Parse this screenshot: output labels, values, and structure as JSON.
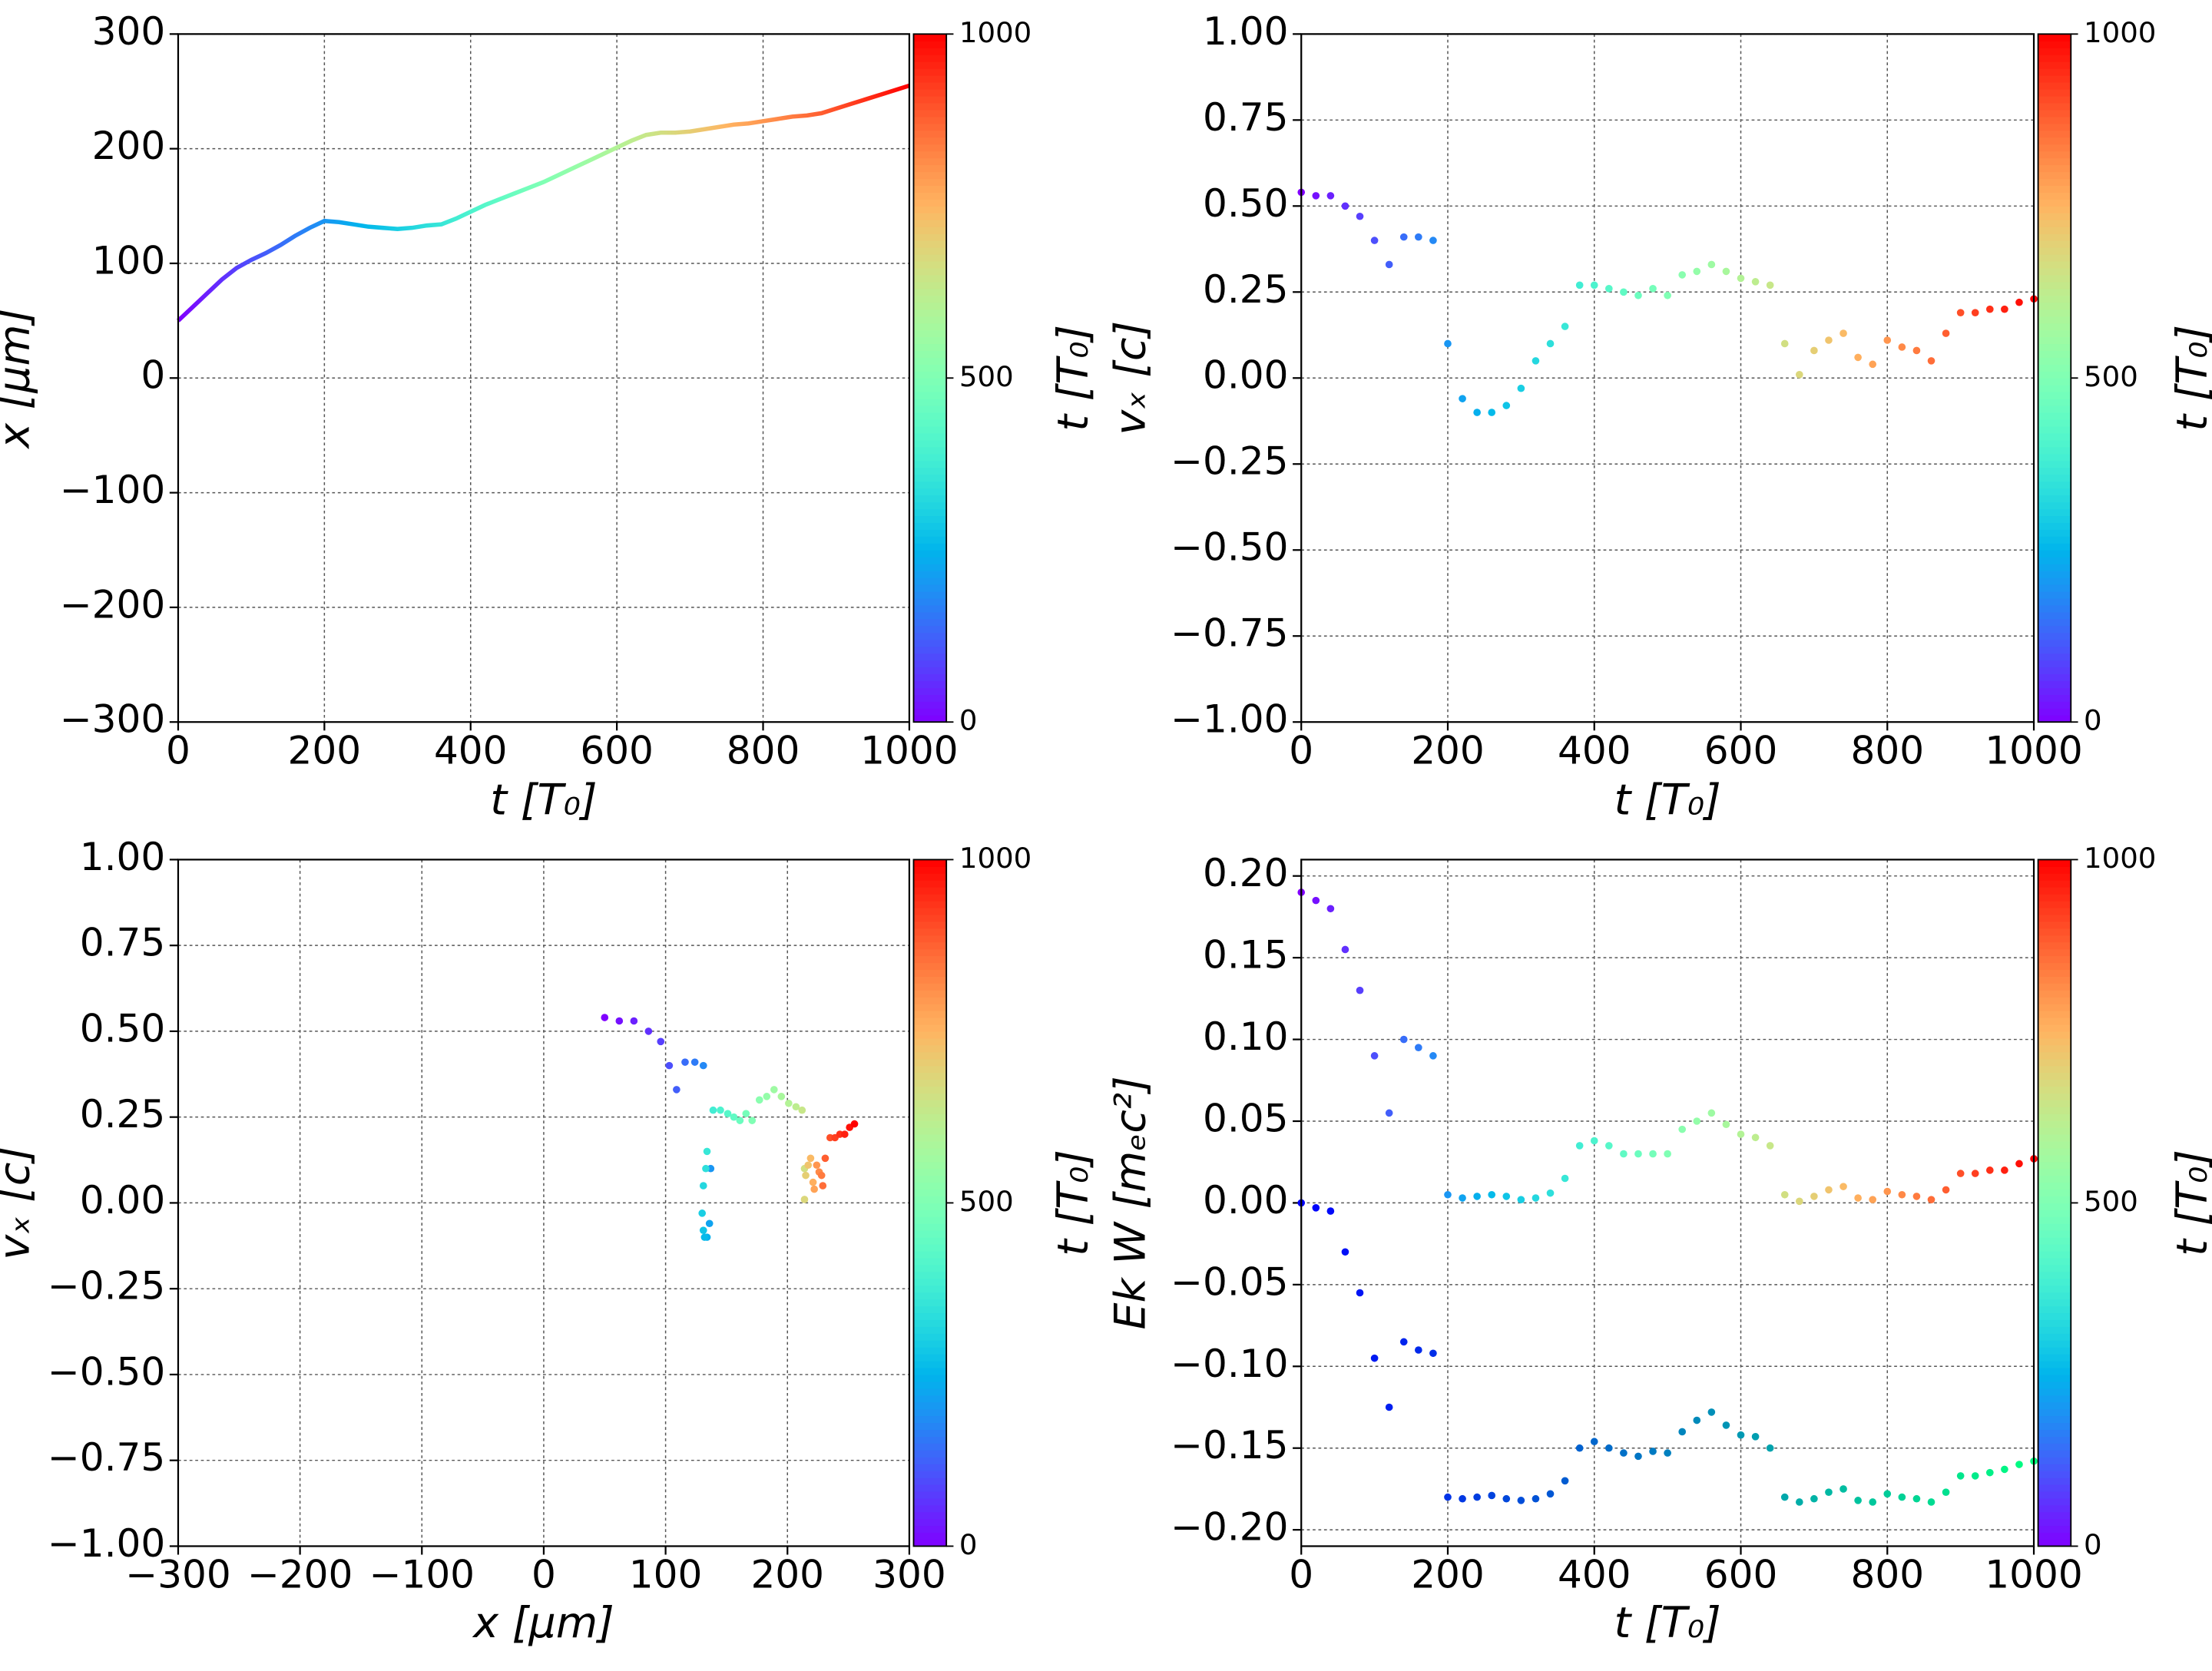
{
  "chart_data": [
    {
      "type": "line",
      "colormap": "rainbow",
      "xlabel": "t  [T₀]",
      "ylabel": "x  [μm]",
      "x": [
        0,
        20,
        40,
        60,
        80,
        100,
        120,
        140,
        160,
        180,
        200,
        220,
        240,
        260,
        280,
        300,
        320,
        340,
        360,
        380,
        400,
        420,
        440,
        460,
        480,
        500,
        520,
        540,
        560,
        580,
        600,
        620,
        640,
        660,
        680,
        700,
        720,
        740,
        760,
        780,
        800,
        820,
        840,
        860,
        880,
        900,
        920,
        940,
        960,
        980,
        1000
      ],
      "values": [
        50,
        62,
        74,
        86,
        96,
        103,
        109,
        116,
        124,
        131,
        137,
        136,
        134,
        132,
        131,
        130,
        131,
        133,
        134,
        139,
        145,
        151,
        156,
        161,
        166,
        171,
        177,
        183,
        189,
        195,
        201,
        207,
        212,
        214,
        214,
        215,
        217,
        219,
        221,
        222,
        224,
        226,
        228,
        229,
        231,
        235,
        239,
        243,
        247,
        251,
        255
      ],
      "xlim": [
        0,
        1000
      ],
      "xticks": [
        0,
        200,
        400,
        600,
        800,
        1000
      ],
      "ylim": [
        -300,
        300
      ],
      "yticks": [
        {
          "value": -300,
          "label": "−300"
        },
        {
          "value": -200,
          "label": "−200"
        },
        {
          "value": -100,
          "label": "−100"
        },
        0,
        100,
        200,
        300
      ],
      "grid": true,
      "colorbar": {
        "label": "t [T₀]",
        "lim": [
          0,
          1000
        ],
        "ticks": [
          0,
          500,
          1000
        ]
      }
    },
    {
      "type": "scatter",
      "colormap": "rainbow",
      "xlabel": "t [T₀]",
      "ylabel": "vₓ [c]",
      "x": [
        0,
        20,
        40,
        60,
        80,
        100,
        120,
        140,
        160,
        180,
        200,
        220,
        240,
        260,
        280,
        300,
        320,
        340,
        360,
        380,
        400,
        420,
        440,
        460,
        480,
        500,
        520,
        540,
        560,
        580,
        600,
        620,
        640,
        660,
        680,
        700,
        720,
        740,
        760,
        780,
        800,
        820,
        840,
        860,
        880,
        900,
        920,
        940,
        960,
        980,
        1000
      ],
      "values": [
        0.54,
        0.53,
        0.53,
        0.5,
        0.47,
        0.4,
        0.33,
        0.41,
        0.41,
        0.4,
        0.1,
        -0.06,
        -0.1,
        -0.1,
        -0.08,
        -0.03,
        0.05,
        0.1,
        0.15,
        0.27,
        0.27,
        0.26,
        0.25,
        0.24,
        0.26,
        0.24,
        0.3,
        0.31,
        0.33,
        0.31,
        0.29,
        0.28,
        0.27,
        0.1,
        0.01,
        0.08,
        0.11,
        0.13,
        0.06,
        0.04,
        0.11,
        0.09,
        0.08,
        0.05,
        0.13,
        0.19,
        0.19,
        0.2,
        0.2,
        0.22,
        0.23
      ],
      "xlim": [
        0,
        1000
      ],
      "xticks": [
        0,
        200,
        400,
        600,
        800,
        1000
      ],
      "ylim": [
        -1,
        1
      ],
      "yticks": [
        {
          "value": -1,
          "label": "−1.00"
        },
        {
          "value": -0.75,
          "label": "−0.75"
        },
        {
          "value": -0.5,
          "label": "−0.50"
        },
        {
          "value": -0.25,
          "label": "−0.25"
        },
        {
          "value": 0,
          "label": "0.00"
        },
        0.25,
        {
          "value": 0.5,
          "label": "0.50"
        },
        0.75,
        {
          "value": 1,
          "label": "1.00"
        }
      ],
      "grid": true,
      "colorbar": {
        "label": "t [T₀]",
        "lim": [
          0,
          1000
        ],
        "ticks": [
          0,
          500,
          1000
        ]
      }
    },
    {
      "type": "scatter",
      "colormap": "rainbow",
      "xlabel": "x [μm]",
      "ylabel": "vₓ [c]",
      "x": [
        50,
        62,
        74,
        86,
        96,
        103,
        109,
        116,
        124,
        131,
        137,
        136,
        134,
        132,
        131,
        130,
        131,
        133,
        134,
        139,
        145,
        151,
        156,
        161,
        166,
        171,
        177,
        183,
        189,
        195,
        201,
        207,
        212,
        214,
        214,
        215,
        217,
        219,
        221,
        222,
        224,
        226,
        228,
        229,
        231,
        235,
        239,
        243,
        247,
        251,
        255
      ],
      "values": [
        0.54,
        0.53,
        0.53,
        0.5,
        0.47,
        0.4,
        0.33,
        0.41,
        0.41,
        0.4,
        0.1,
        -0.06,
        -0.1,
        -0.1,
        -0.08,
        -0.03,
        0.05,
        0.1,
        0.15,
        0.27,
        0.27,
        0.26,
        0.25,
        0.24,
        0.26,
        0.24,
        0.3,
        0.31,
        0.33,
        0.31,
        0.29,
        0.28,
        0.27,
        0.1,
        0.01,
        0.08,
        0.11,
        0.13,
        0.06,
        0.04,
        0.11,
        0.09,
        0.08,
        0.05,
        0.13,
        0.19,
        0.19,
        0.2,
        0.2,
        0.22,
        0.23
      ],
      "color_values": [
        0,
        20,
        40,
        60,
        80,
        100,
        120,
        140,
        160,
        180,
        200,
        220,
        240,
        260,
        280,
        300,
        320,
        340,
        360,
        380,
        400,
        420,
        440,
        460,
        480,
        500,
        520,
        540,
        560,
        580,
        600,
        620,
        640,
        660,
        680,
        700,
        720,
        740,
        760,
        780,
        800,
        820,
        840,
        860,
        880,
        900,
        920,
        940,
        960,
        980,
        1000
      ],
      "xlim": [
        -300,
        300
      ],
      "xticks": [
        {
          "value": -300,
          "label": "−300"
        },
        {
          "value": -200,
          "label": "−200"
        },
        {
          "value": -100,
          "label": "−100"
        },
        0,
        100,
        200,
        300
      ],
      "ylim": [
        -1,
        1
      ],
      "yticks": [
        {
          "value": -1,
          "label": "−1.00"
        },
        {
          "value": -0.75,
          "label": "−0.75"
        },
        {
          "value": -0.5,
          "label": "−0.50"
        },
        {
          "value": -0.25,
          "label": "−0.25"
        },
        {
          "value": 0,
          "label": "0.00"
        },
        0.25,
        {
          "value": 0.5,
          "label": "0.50"
        },
        0.75,
        {
          "value": 1,
          "label": "1.00"
        }
      ],
      "grid": true,
      "colorbar": {
        "label": "t [T₀]",
        "lim": [
          0,
          1000
        ],
        "ticks": [
          0,
          500,
          1000
        ]
      }
    },
    {
      "type": "scatter",
      "xlabel": "t [T₀]",
      "ylabel": "Ek W [mₑc²]",
      "x": [
        0,
        20,
        40,
        60,
        80,
        100,
        120,
        140,
        160,
        180,
        200,
        220,
        240,
        260,
        280,
        300,
        320,
        340,
        360,
        380,
        400,
        420,
        440,
        460,
        480,
        500,
        520,
        540,
        560,
        580,
        600,
        620,
        640,
        660,
        680,
        700,
        720,
        740,
        760,
        780,
        800,
        820,
        840,
        860,
        880,
        900,
        920,
        940,
        960,
        980,
        1000
      ],
      "series": [
        {
          "colormap": "rainbow",
          "values": [
            0.19,
            0.185,
            0.18,
            0.155,
            0.13,
            0.09,
            0.055,
            0.1,
            0.095,
            0.09,
            0.005,
            0.003,
            0.004,
            0.005,
            0.004,
            0.002,
            0.003,
            0.006,
            0.015,
            0.035,
            0.038,
            0.035,
            0.03,
            0.03,
            0.03,
            0.03,
            0.045,
            0.05,
            0.055,
            0.048,
            0.042,
            0.04,
            0.035,
            0.005,
            0.001,
            0.004,
            0.008,
            0.01,
            0.003,
            0.002,
            0.007,
            0.005,
            0.004,
            0.002,
            0.008,
            0.018,
            0.018,
            0.02,
            0.02,
            0.024,
            0.027
          ]
        },
        {
          "colormap": "winter",
          "values": [
            0.0,
            -0.003,
            -0.005,
            -0.03,
            -0.055,
            -0.095,
            -0.125,
            -0.085,
            -0.09,
            -0.092,
            -0.18,
            -0.181,
            -0.18,
            -0.179,
            -0.181,
            -0.182,
            -0.181,
            -0.178,
            -0.17,
            -0.15,
            -0.146,
            -0.15,
            -0.153,
            -0.155,
            -0.152,
            -0.153,
            -0.14,
            -0.133,
            -0.128,
            -0.136,
            -0.142,
            -0.143,
            -0.15,
            -0.18,
            -0.183,
            -0.181,
            -0.177,
            -0.175,
            -0.182,
            -0.183,
            -0.178,
            -0.18,
            -0.181,
            -0.183,
            -0.177,
            -0.167,
            -0.167,
            -0.165,
            -0.163,
            -0.16,
            -0.158
          ]
        }
      ],
      "xlim": [
        0,
        1000
      ],
      "xticks": [
        0,
        200,
        400,
        600,
        800,
        1000
      ],
      "ylim": [
        -0.21,
        0.21
      ],
      "yticks": [
        {
          "value": -0.2,
          "label": "−0.20"
        },
        {
          "value": -0.15,
          "label": "−0.15"
        },
        {
          "value": -0.1,
          "label": "−0.10"
        },
        {
          "value": -0.05,
          "label": "−0.05"
        },
        {
          "value": 0,
          "label": "0.00"
        },
        0.05,
        {
          "value": 0.1,
          "label": "0.10"
        },
        0.15,
        {
          "value": 0.2,
          "label": "0.20"
        }
      ],
      "grid": true,
      "colorbar": {
        "label": "t [T₀]",
        "lim": [
          0,
          1000
        ],
        "ticks": [
          0,
          500,
          1000
        ]
      }
    }
  ]
}
